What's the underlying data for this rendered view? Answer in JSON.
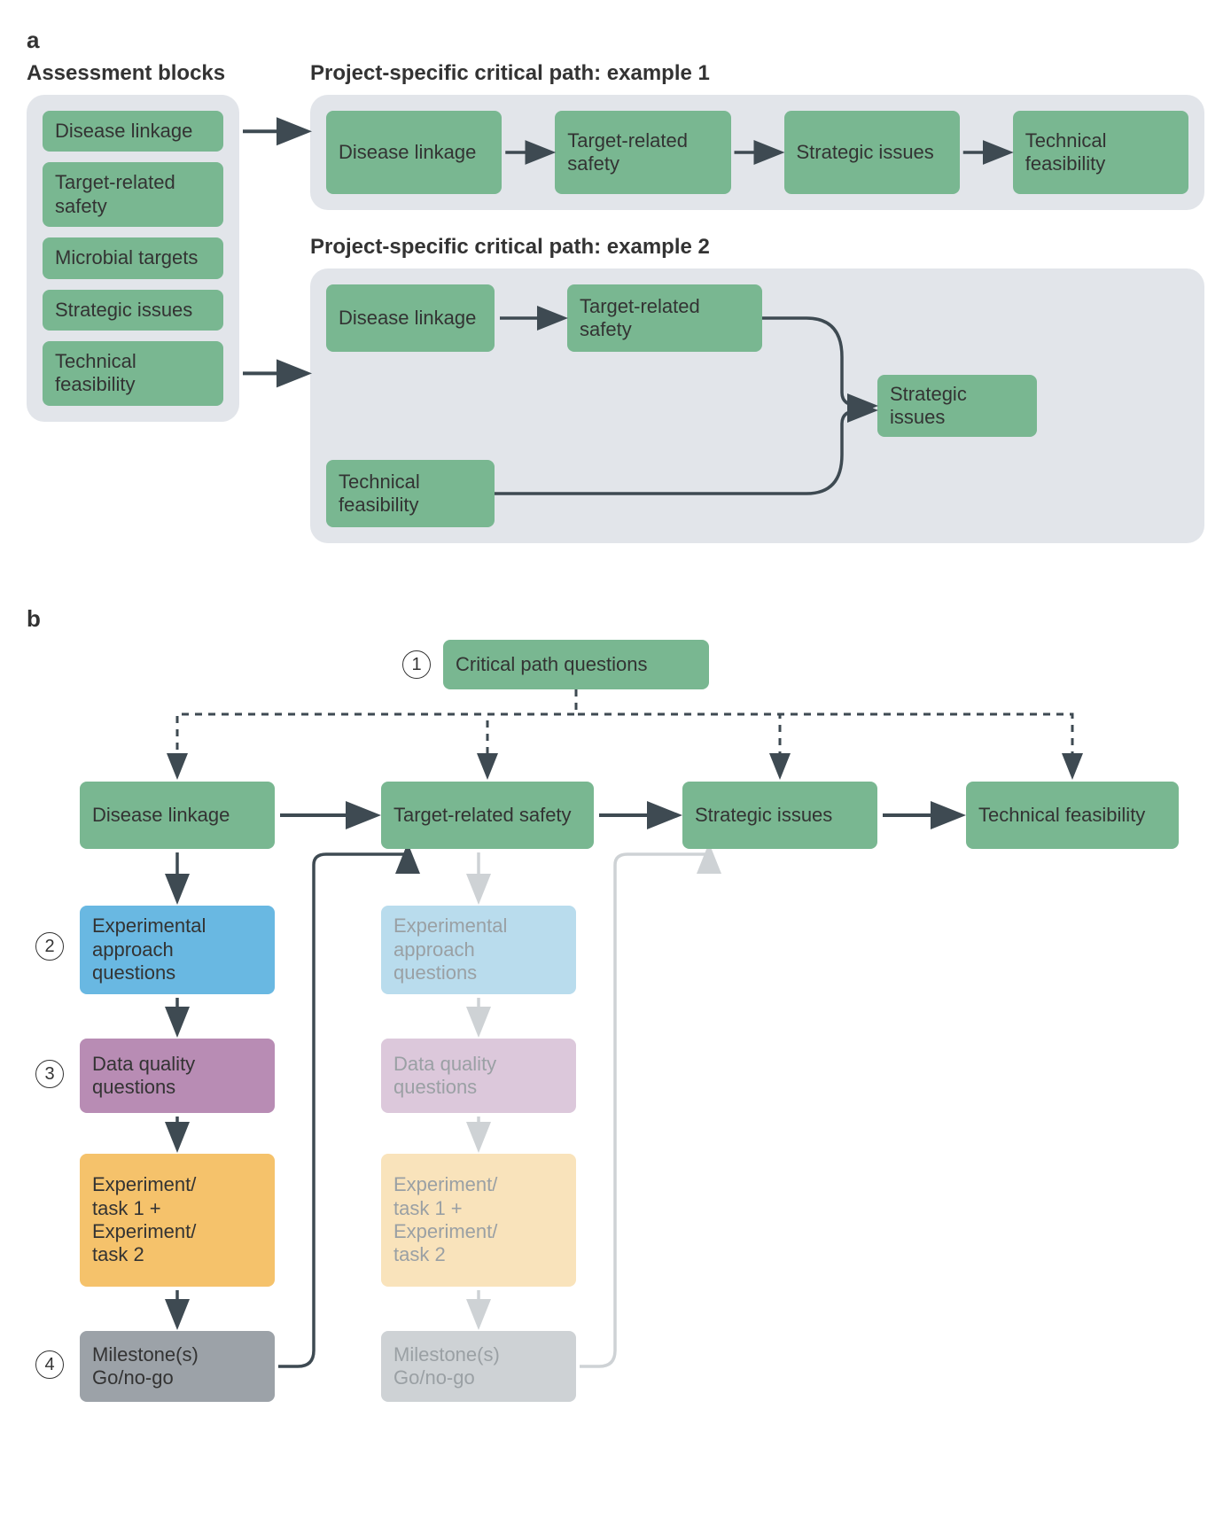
{
  "colors": {
    "green": "#79b791",
    "greyBox": "#e2e5ea",
    "arrow": "#3e4a52",
    "blue": "#69b8e2",
    "blueFaded": "#b9dced",
    "purple": "#b88cb4",
    "purpleFaded": "#dcc8db",
    "orange": "#f5c26b",
    "orangeFaded": "#f9e3bb",
    "greyDark": "#9ca2a8",
    "greyFaded": "#ced2d5",
    "textFaded": "#9aa0a4",
    "text": "#333333"
  },
  "panelA": {
    "label": "a",
    "assessTitle": "Assessment blocks",
    "assessBlocks": [
      "Disease linkage",
      "Target-related safety",
      "Microbial targets",
      "Strategic issues",
      "Technical feasibility"
    ],
    "ex1Title": "Project-specific critical path: example 1",
    "ex1Blocks": [
      "Disease linkage",
      "Target-related safety",
      "Strategic issues",
      "Technical feasibility"
    ],
    "ex2Title": "Project-specific critical path: example 2",
    "ex2TopBlocks": [
      "Disease linkage",
      "Target-related safety"
    ],
    "ex2Bottom": "Technical feasibility",
    "ex2Merge": "Strategic issues"
  },
  "panelB": {
    "label": "b",
    "top": "Critical path questions",
    "topNum": "1",
    "greenRow": [
      "Disease linkage",
      "Target-related safety",
      "Strategic issues",
      "Technical feasibility"
    ],
    "col": {
      "exp": "Experimental approach questions",
      "dq": "Data quality questions",
      "task": "Experiment/\ntask 1 +\nExperiment/\ntask 2",
      "mile": "Milestone(s) Go/no-go"
    },
    "nums": {
      "exp": "2",
      "dq": "3",
      "mile": "4"
    }
  }
}
